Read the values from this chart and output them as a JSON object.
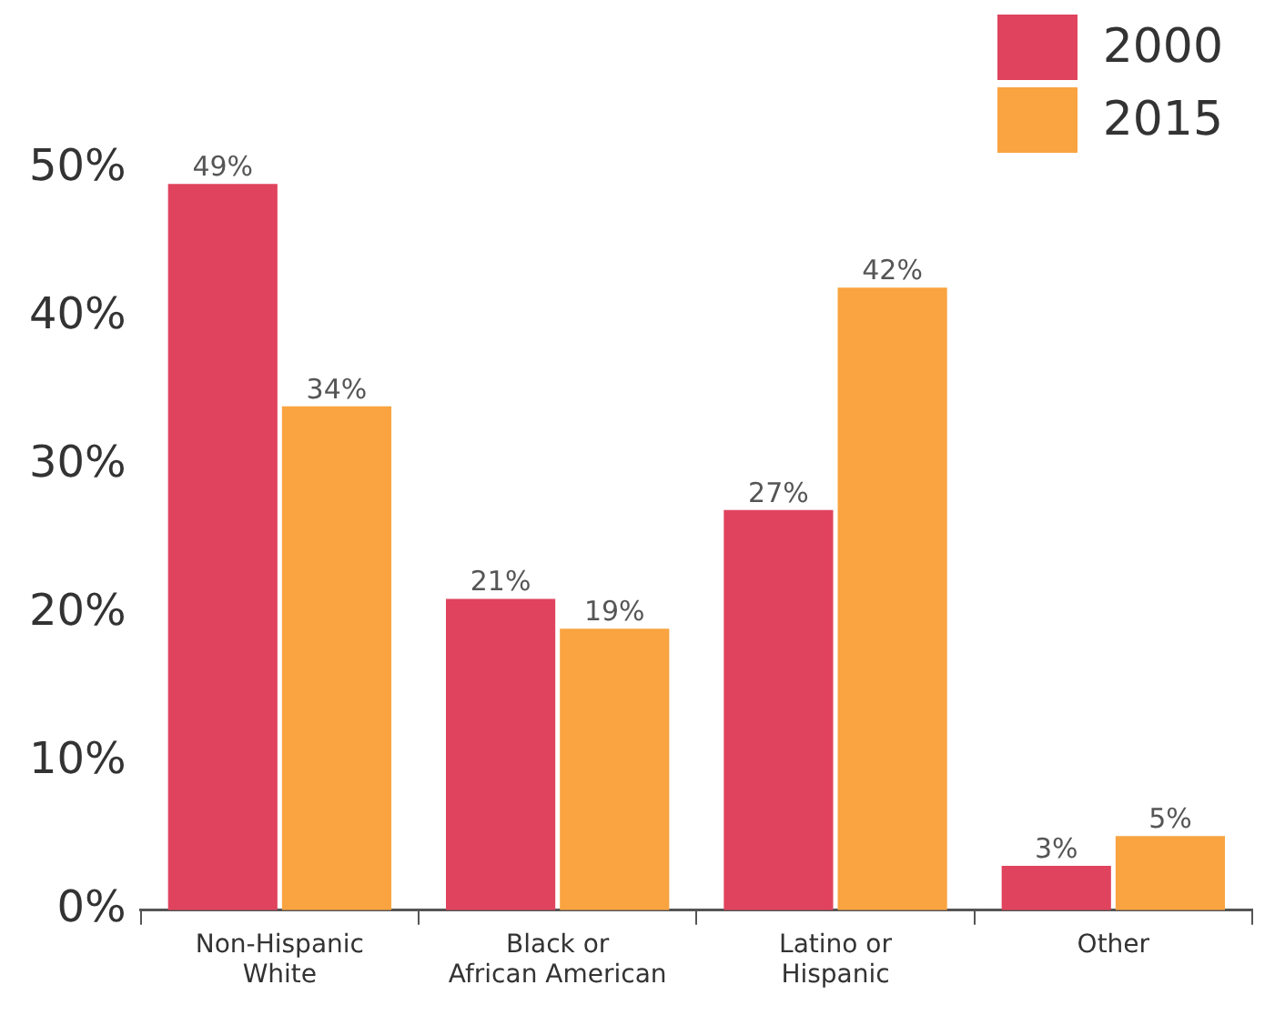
{
  "chart_data": {
    "type": "bar",
    "categories": [
      "Non-Hispanic\nWhite",
      "Black or\nAfrican American",
      "Latino or\nHispanic",
      "Other"
    ],
    "series": [
      {
        "name": "2000",
        "color": "#e0435e",
        "values": [
          49,
          21,
          27,
          3
        ],
        "value_labels": [
          "49%",
          "21%",
          "27%",
          "3%"
        ]
      },
      {
        "name": "2015",
        "color": "#f9a440",
        "values": [
          34,
          19,
          42,
          5
        ],
        "value_labels": [
          "34%",
          "19%",
          "42%",
          "5%"
        ]
      }
    ],
    "ylim": [
      0,
      50
    ],
    "yticks": [
      {
        "value": 0,
        "label": "0%"
      },
      {
        "value": 10,
        "label": "10%"
      },
      {
        "value": 20,
        "label": "20%"
      },
      {
        "value": 30,
        "label": "30%"
      },
      {
        "value": 40,
        "label": "40%"
      },
      {
        "value": 50,
        "label": "50%"
      }
    ],
    "grid": false,
    "legend": "top right"
  }
}
